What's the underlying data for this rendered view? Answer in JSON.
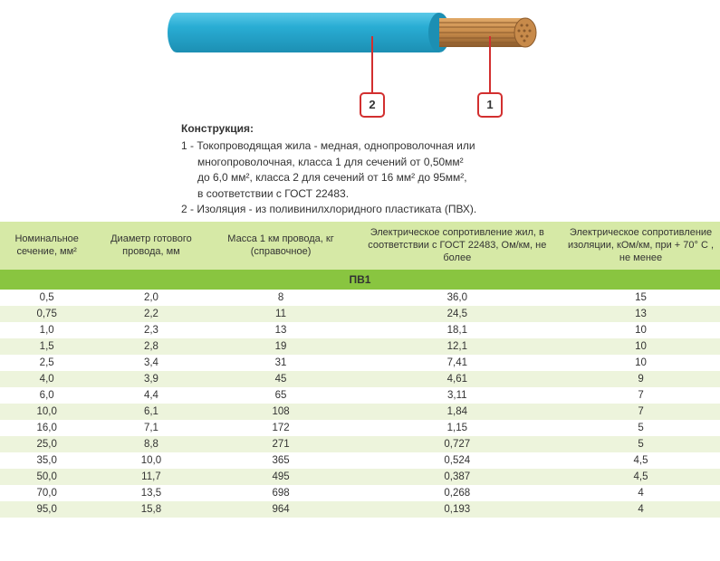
{
  "diagram": {
    "insulation_color": "#29add4",
    "insulation_shadow": "#1c8fb3",
    "conductor_fill": "#c78a4a",
    "conductor_stroke": "#8a5a2c",
    "callout_border": "#d22f2f",
    "callout1_label": "1",
    "callout2_label": "2",
    "construction_title": "Конструкция:",
    "construction_line1": "1 - Токопроводящая жила - медная, однопроволочная или",
    "construction_line2": "многопроволочная, класса 1 для сечений от 0,50мм²",
    "construction_line3": "до 6,0 мм², класса 2  для сечений от 16 мм² до 95мм²,",
    "construction_line4": "в соответствии с ГОСТ 22483.",
    "construction_line5": "2 - Изоляция - из поливинилхлоридного пластиката (ПВХ)."
  },
  "table": {
    "header_bg": "#d6e9a6",
    "subheader_bg": "#89c540",
    "row_odd_bg": "#ffffff",
    "row_even_bg": "#edf4dc",
    "col_widths_pct": [
      13,
      16,
      20,
      29,
      22
    ],
    "columns": [
      "Номинальное сечение, мм²",
      "Диаметр готового провода, мм",
      "Масса 1 км провода, кг (справочное)",
      "Электрическое сопротивление жил, в соответствии с ГОСТ 22483, Ом/км, не более",
      "Электрическое сопротивление изоляции,  кОм/км, при + 70° С , не менее"
    ],
    "subheader": "ПВ1",
    "rows": [
      [
        "0,5",
        "2,0",
        "8",
        "36,0",
        "15"
      ],
      [
        "0,75",
        "2,2",
        "11",
        "24,5",
        "13"
      ],
      [
        "1,0",
        "2,3",
        "13",
        "18,1",
        "10"
      ],
      [
        "1,5",
        "2,8",
        "19",
        "12,1",
        "10"
      ],
      [
        "2,5",
        "3,4",
        "31",
        "7,41",
        "10"
      ],
      [
        "4,0",
        "3,9",
        "45",
        "4,61",
        "9"
      ],
      [
        "6,0",
        "4,4",
        "65",
        "3,11",
        "7"
      ],
      [
        "10,0",
        "6,1",
        "108",
        "1,84",
        "7"
      ],
      [
        "16,0",
        "7,1",
        "172",
        "1,15",
        "5"
      ],
      [
        "25,0",
        "8,8",
        "271",
        "0,727",
        "5"
      ],
      [
        "35,0",
        "10,0",
        "365",
        "0,524",
        "4,5"
      ],
      [
        "50,0",
        "11,7",
        "495",
        "0,387",
        "4,5"
      ],
      [
        "70,0",
        "13,5",
        "698",
        "0,268",
        "4"
      ],
      [
        "95,0",
        "15,8",
        "964",
        "0,193",
        "4"
      ]
    ]
  }
}
